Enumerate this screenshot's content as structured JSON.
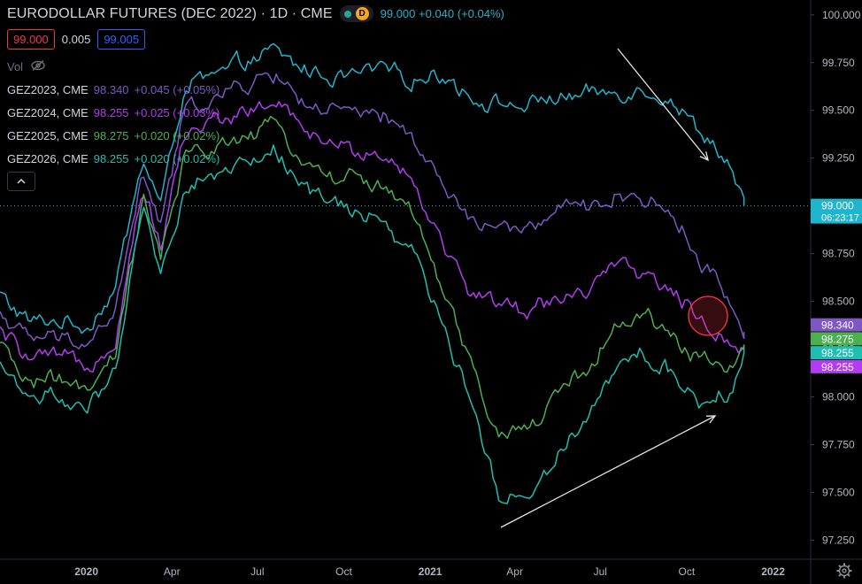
{
  "header": {
    "title": "EURODOLLAR FUTURES (DEC 2022) · 1D · CME",
    "d_badge": "D",
    "main_last": "99.000",
    "main_change": "+0.040 (+0.04%)",
    "status_colors": {
      "dot": "#26a69a",
      "badge": "#f5a623"
    }
  },
  "prices": {
    "bid": "99.000",
    "spread": "0.005",
    "ask": "99.005",
    "bid_color": "#f23645",
    "ask_color": "#2962ff"
  },
  "volume": {
    "label": "Vol",
    "icon": "eye-off-icon"
  },
  "legend": [
    {
      "symbol": "GEZ2023, CME",
      "value": "98.340",
      "change": "+0.045 (+0.05%)"
    },
    {
      "symbol": "GEZ2024, CME",
      "value": "98.255",
      "change": "+0.025 (+0.03%)"
    },
    {
      "symbol": "GEZ2025, CME",
      "value": "98.275",
      "change": "+0.020 (+0.02%)"
    },
    {
      "symbol": "GEZ2026, CME",
      "value": "98.255",
      "change": "+0.020 (+0.02%)"
    }
  ],
  "ui_icons": {
    "collapse": "chevron-up-icon",
    "settings": "gear-icon"
  },
  "chart_data": {
    "type": "line",
    "ylim": [
      97.15,
      100.05
    ],
    "xlim": [
      "2019-10-01",
      "2022-02-10"
    ],
    "y_ticks": [
      "100.000",
      "99.750",
      "99.500",
      "99.250",
      "99.000",
      "98.750",
      "98.500",
      "98.250",
      "98.000",
      "97.750",
      "97.500",
      "97.250"
    ],
    "x_ticks": [
      {
        "label": "2020",
        "date": "2020-01-01"
      },
      {
        "label": "Apr",
        "date": "2020-04-01"
      },
      {
        "label": "Jul",
        "date": "2020-07-01"
      },
      {
        "label": "Oct",
        "date": "2020-10-01"
      },
      {
        "label": "2021",
        "date": "2021-01-01"
      },
      {
        "label": "Apr",
        "date": "2021-04-01"
      },
      {
        "label": "Jul",
        "date": "2021-07-01"
      },
      {
        "label": "Oct",
        "date": "2021-10-01"
      },
      {
        "label": "2022",
        "date": "2022-01-01"
      }
    ],
    "current_price_line": 99.0,
    "current_price_label": "99.000",
    "countdown": "06:23:17",
    "series": [
      {
        "name": "EURODOLLAR FUTURES (DEC 2022)",
        "color": "#1fb5cc",
        "x": [
          "2019-10-01",
          "2019-11-01",
          "2019-12-01",
          "2020-01-01",
          "2020-02-01",
          "2020-03-01",
          "2020-03-20",
          "2020-04-15",
          "2020-05-15",
          "2020-06-15",
          "2020-07-20",
          "2020-08-15",
          "2020-09-15",
          "2020-10-15",
          "2020-11-15",
          "2020-12-15",
          "2021-01-15",
          "2021-02-15",
          "2021-03-15",
          "2021-04-15",
          "2021-05-15",
          "2021-06-15",
          "2021-07-15",
          "2021-08-15",
          "2021-09-15",
          "2021-10-15",
          "2021-11-15",
          "2021-12-01"
        ],
        "y": [
          98.54,
          98.4,
          98.4,
          98.36,
          98.56,
          99.26,
          99.02,
          99.62,
          99.68,
          99.74,
          99.8,
          99.72,
          99.68,
          99.7,
          99.74,
          99.68,
          99.68,
          99.58,
          99.54,
          99.52,
          99.56,
          99.56,
          99.58,
          99.6,
          99.56,
          99.38,
          99.2,
          99.0
        ],
        "last": "99.000"
      },
      {
        "name": "GEZ2023, CME",
        "color": "#7e57c2",
        "x": [
          "2019-10-01",
          "2019-11-01",
          "2019-12-01",
          "2020-01-01",
          "2020-02-01",
          "2020-03-01",
          "2020-03-20",
          "2020-04-15",
          "2020-05-15",
          "2020-06-15",
          "2020-07-20",
          "2020-08-15",
          "2020-09-15",
          "2020-10-15",
          "2020-11-15",
          "2020-12-15",
          "2021-01-15",
          "2021-02-15",
          "2021-03-15",
          "2021-04-15",
          "2021-05-15",
          "2021-06-15",
          "2021-07-15",
          "2021-08-15",
          "2021-09-15",
          "2021-10-15",
          "2021-11-15",
          "2021-12-01"
        ],
        "y": [
          98.44,
          98.3,
          98.3,
          98.26,
          98.44,
          99.16,
          98.9,
          99.5,
          99.56,
          99.62,
          99.68,
          99.56,
          99.5,
          99.48,
          99.46,
          99.36,
          99.1,
          98.92,
          98.9,
          98.88,
          98.96,
          98.98,
          99.04,
          99.04,
          98.96,
          98.72,
          98.5,
          98.34
        ],
        "last": "98.340"
      },
      {
        "name": "GEZ2024, CME",
        "color": "#b23cf0",
        "x": [
          "2019-10-01",
          "2019-11-01",
          "2019-12-01",
          "2020-01-01",
          "2020-02-01",
          "2020-03-01",
          "2020-03-20",
          "2020-04-15",
          "2020-05-15",
          "2020-06-15",
          "2020-07-20",
          "2020-08-15",
          "2020-09-15",
          "2020-10-15",
          "2020-11-15",
          "2020-12-15",
          "2021-01-15",
          "2021-02-15",
          "2021-03-15",
          "2021-04-15",
          "2021-05-15",
          "2021-06-15",
          "2021-07-15",
          "2021-08-15",
          "2021-09-15",
          "2021-10-15",
          "2021-11-15",
          "2021-12-01"
        ],
        "y": [
          98.34,
          98.2,
          98.2,
          98.14,
          98.32,
          99.1,
          98.8,
          99.38,
          99.44,
          99.5,
          99.56,
          99.42,
          99.34,
          99.3,
          99.26,
          99.12,
          98.78,
          98.52,
          98.5,
          98.42,
          98.52,
          98.56,
          98.66,
          98.66,
          98.56,
          98.4,
          98.3,
          98.255
        ],
        "last": "98.255"
      },
      {
        "name": "GEZ2025, CME",
        "color": "#4caf50",
        "x": [
          "2019-10-01",
          "2019-11-01",
          "2019-12-01",
          "2020-01-01",
          "2020-02-01",
          "2020-03-01",
          "2020-03-20",
          "2020-04-15",
          "2020-05-15",
          "2020-06-15",
          "2020-07-20",
          "2020-08-15",
          "2020-09-15",
          "2020-10-15",
          "2020-11-15",
          "2020-12-15",
          "2021-01-15",
          "2021-02-15",
          "2021-03-15",
          "2021-04-15",
          "2021-05-15",
          "2021-06-15",
          "2021-07-15",
          "2021-08-15",
          "2021-09-15",
          "2021-10-15",
          "2021-11-15",
          "2021-12-01"
        ],
        "y": [
          98.26,
          98.08,
          98.1,
          98.0,
          98.22,
          99.04,
          98.72,
          99.24,
          99.3,
          99.36,
          99.42,
          99.26,
          99.18,
          99.14,
          99.1,
          98.94,
          98.56,
          98.16,
          97.8,
          97.84,
          98.0,
          98.14,
          98.36,
          98.42,
          98.32,
          98.2,
          98.16,
          98.275
        ],
        "last": "98.275"
      },
      {
        "name": "GEZ2026, CME",
        "color": "#1ebfb0",
        "x": [
          "2019-10-01",
          "2019-11-01",
          "2019-12-01",
          "2020-01-01",
          "2020-02-01",
          "2020-03-01",
          "2020-03-20",
          "2020-04-15",
          "2020-05-15",
          "2020-06-15",
          "2020-07-20",
          "2020-08-15",
          "2020-09-15",
          "2020-10-15",
          "2020-11-15",
          "2020-12-15",
          "2021-01-15",
          "2021-02-15",
          "2021-03-15",
          "2021-04-15",
          "2021-05-15",
          "2021-06-15",
          "2021-07-15",
          "2021-08-15",
          "2021-09-15",
          "2021-10-15",
          "2021-11-15",
          "2021-12-01"
        ],
        "y": [
          98.16,
          98.0,
          98.0,
          97.9,
          98.12,
          98.98,
          98.66,
          99.1,
          99.16,
          99.22,
          99.3,
          99.14,
          99.04,
          98.98,
          98.92,
          98.76,
          98.36,
          97.96,
          97.5,
          97.48,
          97.7,
          97.9,
          98.16,
          98.22,
          98.12,
          97.98,
          98.02,
          98.255
        ],
        "last": "98.255"
      }
    ]
  }
}
